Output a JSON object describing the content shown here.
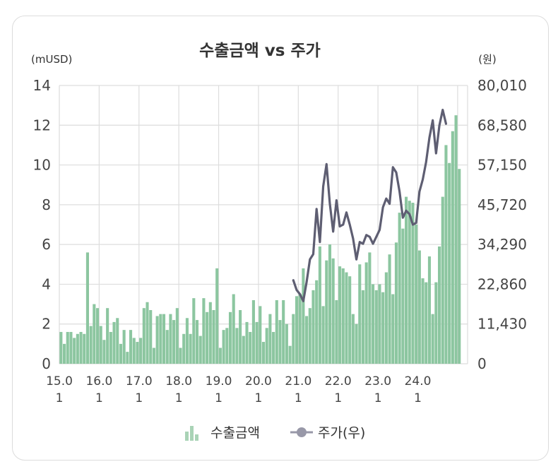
{
  "chart_data": {
    "type": "bar+line",
    "title": "수출금액 vs 주가",
    "y_left_unit": "(mUSD)",
    "y_right_unit": "(원)",
    "y_left_ticks": [
      "14",
      "12",
      "10",
      "8",
      "6",
      "4",
      "2",
      "0"
    ],
    "y_right_ticks": [
      "80,010",
      "68,580",
      "57,150",
      "45,720",
      "34,290",
      "22,860",
      "11,430",
      "0"
    ],
    "ylim_left": [
      0,
      14
    ],
    "ylim_right": [
      0,
      80010
    ],
    "x_ticks": [
      {
        "year": "15.0",
        "month": "1"
      },
      {
        "year": "16.0",
        "month": "1"
      },
      {
        "year": "17.0",
        "month": "1"
      },
      {
        "year": "18.0",
        "month": "1"
      },
      {
        "year": "19.0",
        "month": "1"
      },
      {
        "year": "20.0",
        "month": "1"
      },
      {
        "year": "21.0",
        "month": "1"
      },
      {
        "year": "22.0",
        "month": "1"
      },
      {
        "year": "23.0",
        "month": "1"
      },
      {
        "year": "24.0",
        "month": "1"
      }
    ],
    "series": [
      {
        "name": "수출금액",
        "type": "bar",
        "axis": "left",
        "color": "#8cc6a0",
        "values": [
          1.6,
          1.0,
          1.6,
          1.6,
          1.3,
          1.5,
          1.6,
          1.5,
          5.6,
          1.9,
          3.0,
          2.8,
          1.9,
          1.2,
          2.8,
          1.6,
          2.1,
          2.3,
          1.0,
          1.7,
          0.6,
          1.7,
          1.3,
          1.1,
          1.3,
          2.8,
          3.1,
          2.7,
          0.8,
          2.4,
          2.5,
          2.5,
          1.7,
          2.5,
          2.2,
          2.8,
          0.8,
          1.5,
          2.3,
          1.5,
          3.3,
          2.2,
          1.4,
          3.3,
          2.6,
          3.1,
          2.7,
          4.8,
          0.8,
          1.7,
          1.8,
          2.6,
          3.5,
          1.8,
          2.7,
          1.4,
          2.1,
          1.6,
          3.2,
          2.1,
          2.9,
          1.1,
          1.8,
          2.5,
          1.6,
          3.2,
          2.2,
          3.2,
          2.0,
          0.9,
          2.5,
          3.4,
          3.5,
          4.8,
          2.4,
          2.8,
          3.7,
          4.2,
          5.9,
          2.9,
          5.2,
          6.0,
          5.3,
          3.2,
          4.9,
          4.8,
          4.6,
          4.4,
          2.5,
          2.0,
          5.0,
          3.7,
          5.1,
          5.6,
          4.0,
          3.7,
          4.0,
          3.6,
          4.6,
          5.5,
          3.5,
          6.1,
          7.6,
          6.8,
          8.4,
          8.2,
          8.1,
          7.0,
          5.7,
          4.3,
          4.1,
          5.4,
          2.5,
          4.1,
          5.9,
          8.4,
          11.0,
          10.1,
          11.7,
          12.5,
          9.8
        ]
      },
      {
        "name": "주가(우)",
        "type": "line",
        "axis": "right",
        "color": "#5e5e72",
        "start_index": 70,
        "values": [
          24000,
          21200,
          20000,
          18000,
          23500,
          30000,
          31500,
          44500,
          35000,
          51000,
          57400,
          46000,
          38000,
          47000,
          39500,
          40000,
          43500,
          40000,
          36000,
          30000,
          35000,
          34500,
          37000,
          36500,
          34500,
          36500,
          38500,
          45000,
          47500,
          46000,
          56500,
          55000,
          49500,
          42000,
          44000,
          43000,
          40000,
          40500,
          49500,
          53000,
          58000,
          65000,
          70000,
          60500,
          68500,
          73000,
          69000
        ]
      }
    ]
  },
  "legend": [
    {
      "label": "수출금액",
      "icon": "bar-chart-icon"
    },
    {
      "label": "주가(우)",
      "icon": "line-marker-icon"
    }
  ]
}
